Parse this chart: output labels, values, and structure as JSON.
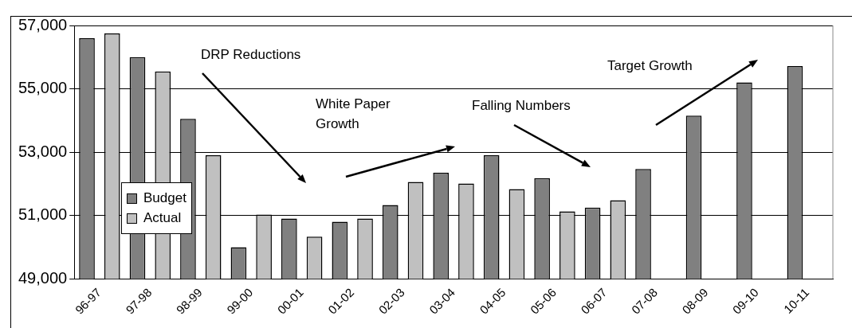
{
  "chart_data": {
    "type": "bar",
    "categories": [
      "96-97",
      "97-98",
      "98-99",
      "99-00",
      "00-01",
      "01-02",
      "02-03",
      "03-04",
      "04-05",
      "05-06",
      "06-07",
      "07-08",
      "08-09",
      "09-10",
      "10-11"
    ],
    "series": [
      {
        "name": "Budget",
        "color": "#808080",
        "values": [
          56600,
          56000,
          54050,
          50000,
          50900,
          50800,
          51330,
          52350,
          52900,
          52180,
          51250,
          52470,
          54150,
          55200,
          55720
        ]
      },
      {
        "name": "Actual",
        "color": "#c0c0c0",
        "values": [
          56750,
          55550,
          52900,
          51030,
          50330,
          50900,
          52060,
          52010,
          51830,
          51130,
          51480,
          null,
          null,
          null,
          null
        ]
      }
    ],
    "ylim": [
      49000,
      57000
    ],
    "yticks": [
      {
        "value": 49000,
        "label": "49,000"
      },
      {
        "value": 51000,
        "label": "51,000"
      },
      {
        "value": 53000,
        "label": "53,000"
      },
      {
        "value": 55000,
        "label": "55,000"
      },
      {
        "value": 57000,
        "label": "57,000"
      }
    ],
    "grid": "y",
    "legend": "bottom left",
    "annotations": [
      "DRP Reductions",
      "White Paper Growth",
      "Falling Numbers",
      "Target Growth"
    ]
  }
}
